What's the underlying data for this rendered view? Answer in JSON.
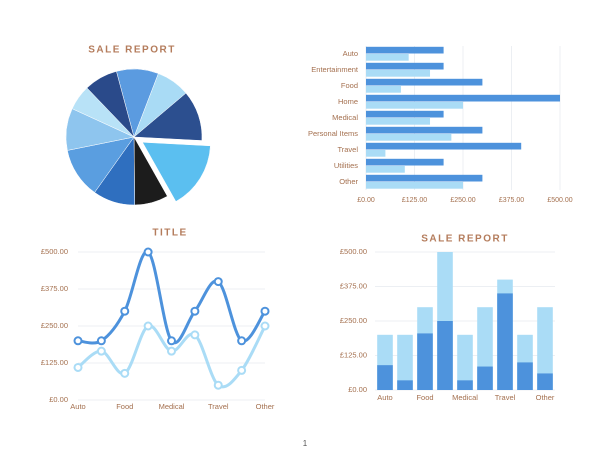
{
  "chart_data": [
    {
      "type": "pie",
      "title": "SALE REPORT",
      "values": [
        10,
        8,
        12,
        16,
        8,
        10,
        12,
        10,
        6,
        8
      ],
      "colors": [
        "#5b9be0",
        "#a9dbf5",
        "#2c4f8f",
        "#5bbff0",
        "#1c1c1c",
        "#2f6fbf",
        "#5a9ee0",
        "#8ec5ee",
        "#b8e2f7",
        "#2a4a8a"
      ],
      "exploded_index": 3
    },
    {
      "type": "hbar",
      "categories": [
        "Auto",
        "Entertainment",
        "Food",
        "Home",
        "Medical",
        "Personal Items",
        "Travel",
        "Utilities",
        "Other"
      ],
      "series": [
        {
          "color": "#4d92dc",
          "values": [
            200,
            200,
            300,
            500,
            200,
            300,
            400,
            200,
            300
          ]
        },
        {
          "color": "#aadcf6",
          "values": [
            110,
            165,
            90,
            250,
            165,
            220,
            50,
            100,
            250
          ]
        }
      ],
      "xlim": [
        0,
        500
      ],
      "xticks": [
        {
          "value": 0,
          "label": "£0.00"
        },
        {
          "value": 125,
          "label": "£125.00"
        },
        {
          "value": 250,
          "label": "£250.00"
        },
        {
          "value": 375,
          "label": "£375.00"
        },
        {
          "value": 500,
          "label": "£500.00"
        }
      ],
      "grid": true
    },
    {
      "type": "line",
      "title": "TITLE",
      "categories": [
        "Auto",
        null,
        "Food",
        null,
        "Medical",
        null,
        "Travel",
        null,
        "Other"
      ],
      "series": [
        {
          "color": "#4d92dc",
          "values": [
            200,
            200,
            300,
            500,
            200,
            300,
            400,
            200,
            300
          ]
        },
        {
          "color": "#aadcf6",
          "values": [
            110,
            165,
            90,
            250,
            165,
            220,
            50,
            100,
            250
          ]
        }
      ],
      "ylim": [
        0,
        500
      ],
      "yticks": [
        {
          "value": 0,
          "label": "£0.00"
        },
        {
          "value": 125,
          "label": "£125.00"
        },
        {
          "value": 250,
          "label": "£250.00"
        },
        {
          "value": 375,
          "label": "£375.00"
        },
        {
          "value": 500,
          "label": "£500.00"
        }
      ],
      "grid": true
    },
    {
      "type": "bar",
      "title": "SALE REPORT",
      "categories": [
        "Auto",
        null,
        "Food",
        null,
        "Medical",
        null,
        "Travel",
        null,
        "Other"
      ],
      "series": [
        {
          "color": "#aadcf6",
          "values": [
            200,
            200,
            300,
            500,
            200,
            300,
            400,
            200,
            300
          ]
        },
        {
          "color": "#4d92dc",
          "values": [
            90,
            35,
            205,
            250,
            35,
            85,
            350,
            100,
            60
          ]
        }
      ],
      "ylim": [
        0,
        500
      ],
      "yticks": [
        {
          "value": 0,
          "label": "£0.00"
        },
        {
          "value": 125,
          "label": "£125.00"
        },
        {
          "value": 250,
          "label": "£250.00"
        },
        {
          "value": 375,
          "label": "£375.00"
        },
        {
          "value": 500,
          "label": "£500.00"
        }
      ],
      "grid": true
    }
  ],
  "page_number": "1"
}
